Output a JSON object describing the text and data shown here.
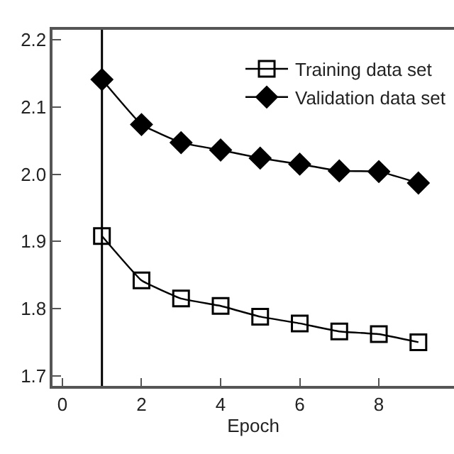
{
  "chart_data": {
    "type": "line",
    "xlabel": "Epoch",
    "x": [
      1,
      2,
      3,
      4,
      5,
      6,
      7,
      8,
      9
    ],
    "series": [
      {
        "name": "Training data set",
        "color": "#000000",
        "marker": "square-open",
        "values": [
          1.908,
          1.842,
          1.815,
          1.804,
          1.788,
          1.778,
          1.766,
          1.762,
          1.75
        ]
      },
      {
        "name": "Validation data set",
        "color": "#000000",
        "marker": "diamond",
        "values": [
          2.141,
          2.074,
          2.047,
          2.036,
          2.024,
          2.015,
          2.005,
          2.004,
          1.987
        ]
      }
    ],
    "xlim": [
      -0.25,
      9.9
    ],
    "xticks": [
      0,
      2,
      4,
      6,
      8
    ],
    "ylim": [
      1.685,
      2.215
    ],
    "yticks": [
      1.7,
      1.8,
      1.9,
      {
        "value": 2,
        "label": "2.0"
      },
      2.1,
      2.2
    ],
    "ref_lines": [
      {
        "axis": "x",
        "value": 1,
        "color": "#000000"
      }
    ],
    "grid": false,
    "legend": "top right",
    "line_style": "solid"
  }
}
